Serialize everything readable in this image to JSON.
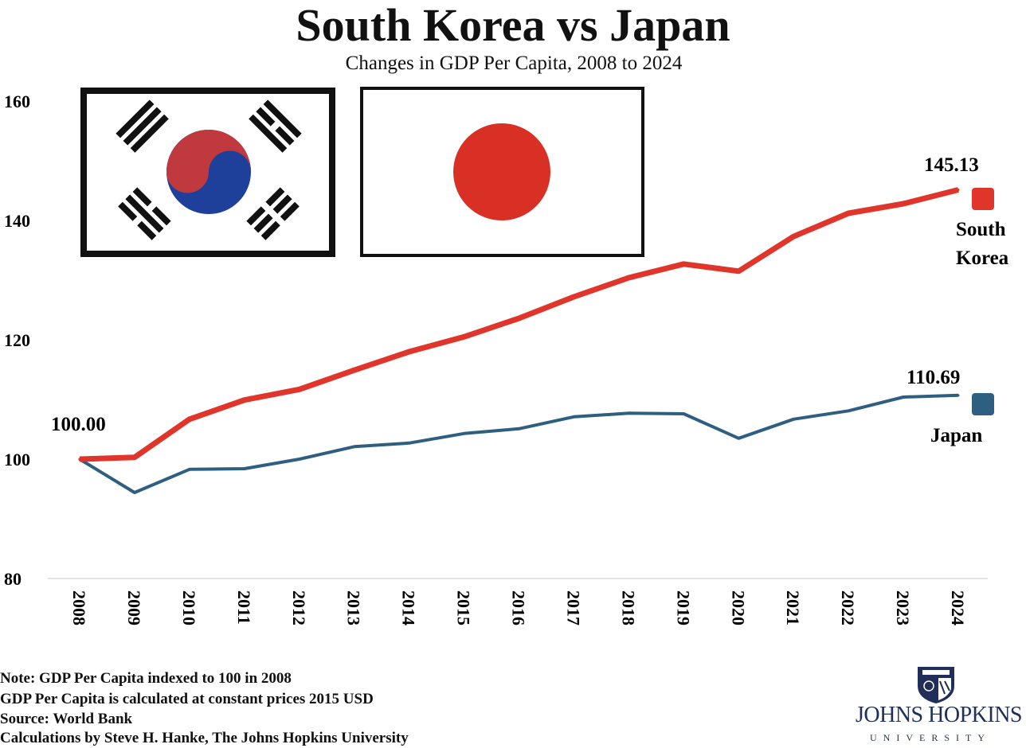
{
  "chart_data": {
    "type": "line",
    "title": "South Korea vs Japan",
    "subtitle": "Changes in GDP Per Capita, 2008 to 2024",
    "xlabel": "",
    "ylabel": "",
    "ylim": [
      80,
      160
    ],
    "yticks": [
      80,
      100,
      120,
      140,
      160
    ],
    "grid": false,
    "x": [
      2008,
      2009,
      2010,
      2011,
      2012,
      2013,
      2014,
      2015,
      2016,
      2017,
      2018,
      2019,
      2020,
      2021,
      2022,
      2023,
      2024
    ],
    "series": [
      {
        "name": "South Korea",
        "name_lines": [
          "South",
          "Korea"
        ],
        "color": "#e0352b",
        "values": [
          100.0,
          100.3,
          106.7,
          109.9,
          111.7,
          114.9,
          118.0,
          120.5,
          123.6,
          127.2,
          130.4,
          132.7,
          131.5,
          137.3,
          141.2,
          142.8,
          145.13
        ],
        "end_label": "145.13"
      },
      {
        "name": "Japan",
        "name_lines": [
          "Japan"
        ],
        "color": "#2f5f80",
        "values": [
          100.0,
          94.4,
          98.3,
          98.4,
          100.0,
          102.1,
          102.7,
          104.3,
          105.1,
          107.1,
          107.7,
          107.6,
          103.5,
          106.7,
          108.1,
          110.4,
          110.69
        ],
        "end_label": "110.69"
      }
    ],
    "start_label": "100.00",
    "legend": "right, at line ends"
  },
  "notes": [
    "Note: GDP Per Capita indexed to 100 in 2008",
    "GDP Per Capita is calculated at constant prices 2015 USD",
    "Source: World Bank",
    "Calculations by Steve H. Hanke, The Johns Hopkins University"
  ],
  "logo": {
    "name": "Johns Hopkins",
    "sub": "University",
    "color": "#1f2f5a"
  },
  "flags": [
    "south-korea-flag",
    "japan-flag"
  ]
}
